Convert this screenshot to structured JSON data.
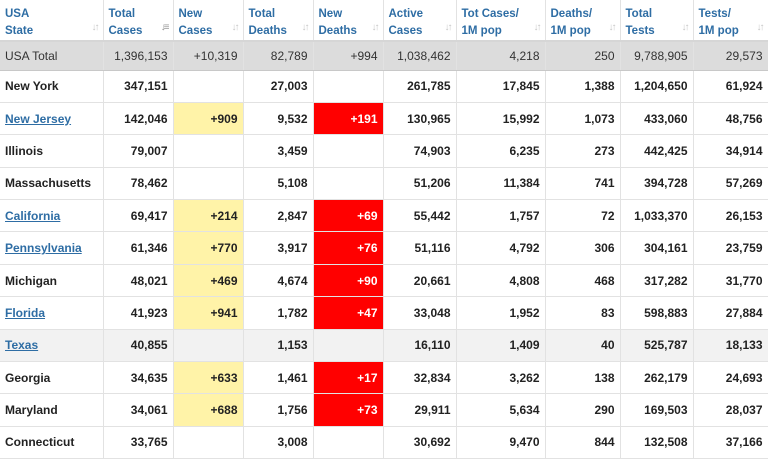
{
  "columns": [
    {
      "line1": "USA",
      "line2": "State",
      "sort_icon": "sort-icon"
    },
    {
      "line1": "Total",
      "line2": "Cases",
      "sort_icon": "sort-desc-icon"
    },
    {
      "line1": "New",
      "line2": "Cases",
      "sort_icon": "sort-icon"
    },
    {
      "line1": "Total",
      "line2": "Deaths",
      "sort_icon": "sort-icon"
    },
    {
      "line1": "New",
      "line2": "Deaths",
      "sort_icon": "sort-icon"
    },
    {
      "line1": "Active",
      "line2": "Cases",
      "sort_icon": "sort-icon"
    },
    {
      "line1": "Tot Cases/",
      "line2": "1M pop",
      "sort_icon": "sort-icon"
    },
    {
      "line1": "Deaths/",
      "line2": "1M pop",
      "sort_icon": "sort-icon"
    },
    {
      "line1": "Total",
      "line2": "Tests",
      "sort_icon": "sort-icon"
    },
    {
      "line1": "Tests/",
      "line2": "1M pop",
      "sort_icon": "sort-icon"
    }
  ],
  "total_row": [
    "USA Total",
    "1,396,153",
    "+10,319",
    "82,789",
    "+994",
    "1,038,462",
    "4,218",
    "250",
    "9,788,905",
    "29,573"
  ],
  "rows": [
    {
      "cells": [
        "New York",
        "347,151",
        "",
        "27,003",
        "",
        "261,785",
        "17,845",
        "1,388",
        "1,204,650",
        "61,924"
      ],
      "link": false,
      "alt": false
    },
    {
      "cells": [
        "New Jersey",
        "142,046",
        "+909",
        "9,532",
        "+191",
        "130,965",
        "15,992",
        "1,073",
        "433,060",
        "48,756"
      ],
      "link": true,
      "alt": false
    },
    {
      "cells": [
        "Illinois",
        "79,007",
        "",
        "3,459",
        "",
        "74,903",
        "6,235",
        "273",
        "442,425",
        "34,914"
      ],
      "link": false,
      "alt": false
    },
    {
      "cells": [
        "Massachusetts",
        "78,462",
        "",
        "5,108",
        "",
        "51,206",
        "11,384",
        "741",
        "394,728",
        "57,269"
      ],
      "link": false,
      "alt": false
    },
    {
      "cells": [
        "California",
        "69,417",
        "+214",
        "2,847",
        "+69",
        "55,442",
        "1,757",
        "72",
        "1,033,370",
        "26,153"
      ],
      "link": true,
      "alt": false
    },
    {
      "cells": [
        "Pennsylvania",
        "61,346",
        "+770",
        "3,917",
        "+76",
        "51,116",
        "4,792",
        "306",
        "304,161",
        "23,759"
      ],
      "link": true,
      "alt": false
    },
    {
      "cells": [
        "Michigan",
        "48,021",
        "+469",
        "4,674",
        "+90",
        "20,661",
        "4,808",
        "468",
        "317,282",
        "31,770"
      ],
      "link": false,
      "alt": false
    },
    {
      "cells": [
        "Florida",
        "41,923",
        "+941",
        "1,782",
        "+47",
        "33,048",
        "1,952",
        "83",
        "598,883",
        "27,884"
      ],
      "link": true,
      "alt": false
    },
    {
      "cells": [
        "Texas",
        "40,855",
        "",
        "1,153",
        "",
        "16,110",
        "1,409",
        "40",
        "525,787",
        "18,133"
      ],
      "link": true,
      "alt": true
    },
    {
      "cells": [
        "Georgia",
        "34,635",
        "+633",
        "1,461",
        "+17",
        "32,834",
        "3,262",
        "138",
        "262,179",
        "24,693"
      ],
      "link": false,
      "alt": false
    },
    {
      "cells": [
        "Maryland",
        "34,061",
        "+688",
        "1,756",
        "+73",
        "29,911",
        "5,634",
        "290",
        "169,503",
        "28,037"
      ],
      "link": false,
      "alt": false
    },
    {
      "cells": [
        "Connecticut",
        "33,765",
        "",
        "3,008",
        "",
        "30,692",
        "9,470",
        "844",
        "132,508",
        "37,166"
      ],
      "link": false,
      "alt": false
    }
  ],
  "colors": {
    "header_text": "#2e6da4",
    "new_cases_bg": "#fff3a8",
    "new_deaths_bg": "#ff0000",
    "total_row_bg": "#dcdcdc"
  }
}
